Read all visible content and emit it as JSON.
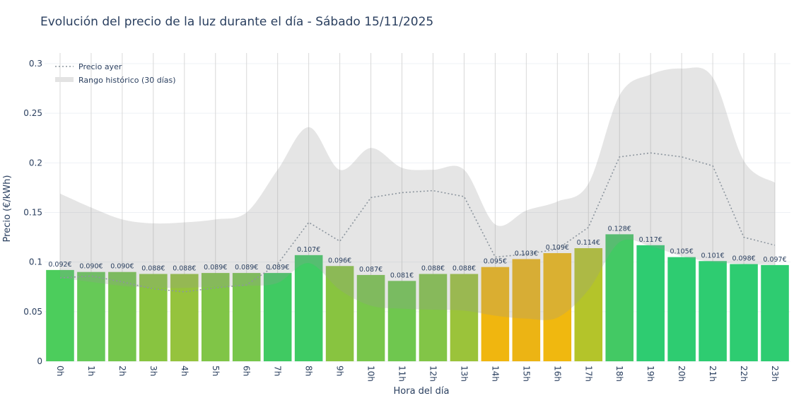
{
  "chart_data": {
    "type": "bar",
    "title": "Evolución del precio de la luz durante el día - Sábado 15/11/2025",
    "xlabel": "Hora del día",
    "ylabel": "Precio (€/kWh)",
    "ylim": [
      0,
      0.31
    ],
    "yticks": [
      0,
      0.05,
      0.1,
      0.15,
      0.2,
      0.25,
      0.3
    ],
    "ytick_labels": [
      "0",
      "0.05",
      "0.1",
      "0.15",
      "0.2",
      "0.25",
      "0.3"
    ],
    "grid": true,
    "legend_position": "top-left",
    "categories": [
      "0h",
      "1h",
      "2h",
      "3h",
      "4h",
      "5h",
      "6h",
      "7h",
      "8h",
      "9h",
      "10h",
      "11h",
      "12h",
      "13h",
      "14h",
      "15h",
      "16h",
      "17h",
      "18h",
      "19h",
      "20h",
      "21h",
      "22h",
      "23h"
    ],
    "series": [
      {
        "type": "bar",
        "values": [
          0.092,
          0.09,
          0.09,
          0.088,
          0.088,
          0.089,
          0.089,
          0.089,
          0.107,
          0.096,
          0.087,
          0.081,
          0.088,
          0.088,
          0.095,
          0.103,
          0.109,
          0.114,
          0.128,
          0.117,
          0.105,
          0.101,
          0.098,
          0.097
        ],
        "data_labels": [
          "0.092€",
          "0.090€",
          "0.090€",
          "0.088€",
          "0.088€",
          "0.089€",
          "0.089€",
          "0.089€",
          "0.107€",
          "0.096€",
          "0.087€",
          "0.081€",
          "0.088€",
          "0.088€",
          "0.095€",
          "0.103€",
          "0.109€",
          "0.114€",
          "0.128€",
          "0.117€",
          "0.105€",
          "0.101€",
          "0.098€",
          "0.097€"
        ],
        "colors": [
          "#4ccd5c",
          "#66c957",
          "#75c64c",
          "#88c440",
          "#95c33d",
          "#80c547",
          "#78c64b",
          "#40ca62",
          "#3fcb64",
          "#88c440",
          "#78c64b",
          "#6fc74f",
          "#82c547",
          "#9bc33a",
          "#f0b60f",
          "#ecb414",
          "#f0b80f",
          "#b4c42a",
          "#43c964",
          "#2ecc71",
          "#2ecc71",
          "#2ecc71",
          "#2ecc71",
          "#2ecc71"
        ]
      },
      {
        "type": "line",
        "name": "Precio ayer",
        "style": "dotted",
        "color": "#8c959e",
        "values": [
          0.084,
          0.086,
          0.08,
          0.073,
          0.07,
          0.074,
          0.077,
          0.098,
          0.14,
          0.121,
          0.165,
          0.17,
          0.172,
          0.166,
          0.105,
          0.108,
          0.113,
          0.135,
          0.206,
          0.21,
          0.206,
          0.197,
          0.125,
          0.117
        ]
      },
      {
        "type": "area-range",
        "name": "Rango histórico (30 días)",
        "color": "#d3d3d3",
        "upper": [
          0.169,
          0.155,
          0.143,
          0.139,
          0.14,
          0.143,
          0.15,
          0.193,
          0.236,
          0.193,
          0.215,
          0.195,
          0.193,
          0.193,
          0.138,
          0.152,
          0.161,
          0.179,
          0.268,
          0.289,
          0.295,
          0.286,
          0.202,
          0.18
        ],
        "lower": [
          0.084,
          0.08,
          0.076,
          0.074,
          0.074,
          0.075,
          0.076,
          0.079,
          0.099,
          0.072,
          0.056,
          0.053,
          0.052,
          0.051,
          0.046,
          0.043,
          0.044,
          0.072,
          0.12,
          0.116,
          0.106,
          0.1,
          0.098,
          0.097
        ]
      }
    ]
  }
}
